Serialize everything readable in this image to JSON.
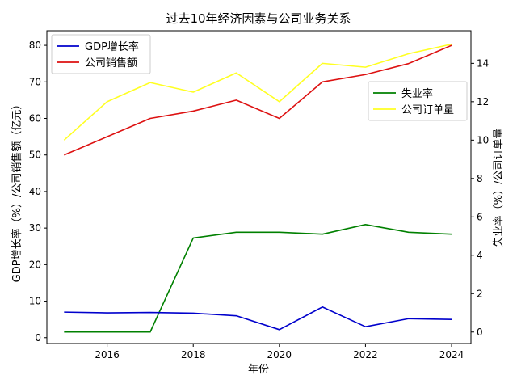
{
  "chart_data": {
    "type": "line",
    "title": "过去10年经济因素与公司业务关系",
    "xlabel": "年份",
    "ylabel_left": "GDP增长率（%）/公司销售额（亿元）",
    "ylabel_right": "失业率（%）/公司订单量",
    "x": [
      2015,
      2016,
      2017,
      2018,
      2019,
      2020,
      2021,
      2022,
      2023,
      2024
    ],
    "x_ticks": [
      "2016",
      "2018",
      "2020",
      "2022",
      "2024"
    ],
    "xlim": [
      2014.6,
      2024.45
    ],
    "ylim_left": [
      -1.6,
      84
    ],
    "ylim_right": [
      -0.6,
      15.7
    ],
    "left_ticks": [
      0,
      10,
      20,
      30,
      40,
      50,
      60,
      70,
      80
    ],
    "right_ticks": [
      0,
      2,
      4,
      6,
      8,
      10,
      12,
      14
    ],
    "series_left": [
      {
        "name": "GDP增长率",
        "color": "#0000cc",
        "values": [
          7.0,
          6.8,
          6.9,
          6.7,
          6.0,
          2.2,
          8.4,
          3.0,
          5.2,
          5.0
        ]
      },
      {
        "name": "公司销售额",
        "color": "#dd1111",
        "values": [
          50,
          55,
          60,
          62,
          65,
          60,
          70,
          72,
          75,
          80
        ]
      }
    ],
    "series_right": [
      {
        "name": "失业率",
        "color": "#008000",
        "values": [
          0.0,
          0.0,
          0.0,
          4.9,
          5.2,
          5.2,
          5.1,
          5.6,
          5.2,
          5.1
        ]
      },
      {
        "name": "公司订单量",
        "color": "#ffff22",
        "values": [
          10.0,
          12.0,
          13.0,
          12.5,
          13.5,
          12.0,
          14.0,
          13.8,
          14.5,
          15.0
        ]
      }
    ],
    "legend_left_position": "upper-left",
    "legend_right_position": "upper-right",
    "grid": false
  }
}
